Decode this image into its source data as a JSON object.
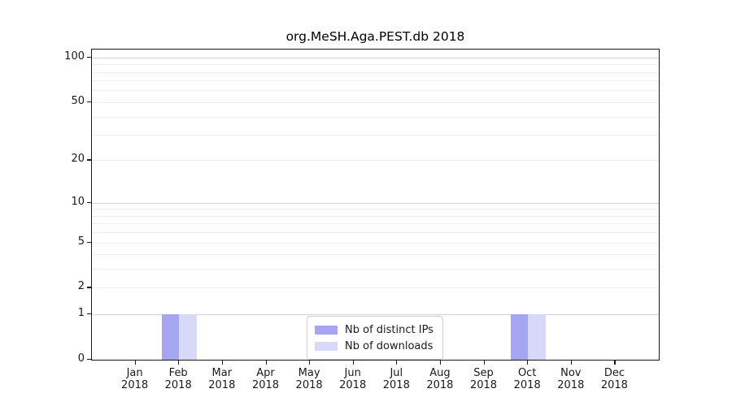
{
  "chart_data": {
    "type": "bar",
    "title": "org.MeSH.Aga.PEST.db 2018",
    "categories": [
      "Jan",
      "Feb",
      "Mar",
      "Apr",
      "May",
      "Jun",
      "Jul",
      "Aug",
      "Sep",
      "Oct",
      "Nov",
      "Dec"
    ],
    "category_year": "2018",
    "series": [
      {
        "name": "Nb of distinct IPs",
        "color": "#a5a5f2",
        "values": [
          0,
          1,
          0,
          0,
          0,
          0,
          0,
          0,
          0,
          1,
          0,
          0
        ]
      },
      {
        "name": "Nb of downloads",
        "color": "#d8d8f9",
        "values": [
          0,
          1,
          0,
          0,
          0,
          0,
          0,
          0,
          0,
          1,
          0,
          0
        ]
      }
    ],
    "xlabel": "",
    "ylabel": "",
    "yscale": "log1p",
    "ylim": [
      0,
      113
    ],
    "y_ticks": [
      0,
      1,
      2,
      5,
      10,
      20,
      50,
      100
    ],
    "y_major_gridlines": [
      1,
      10,
      100
    ],
    "y_minor_gridlines": [
      2,
      3,
      4,
      5,
      6,
      7,
      8,
      9,
      20,
      30,
      40,
      50,
      60,
      70,
      80,
      90
    ],
    "grid": true,
    "legend_position": "lower center",
    "bar_group_width_fraction": 0.8
  }
}
